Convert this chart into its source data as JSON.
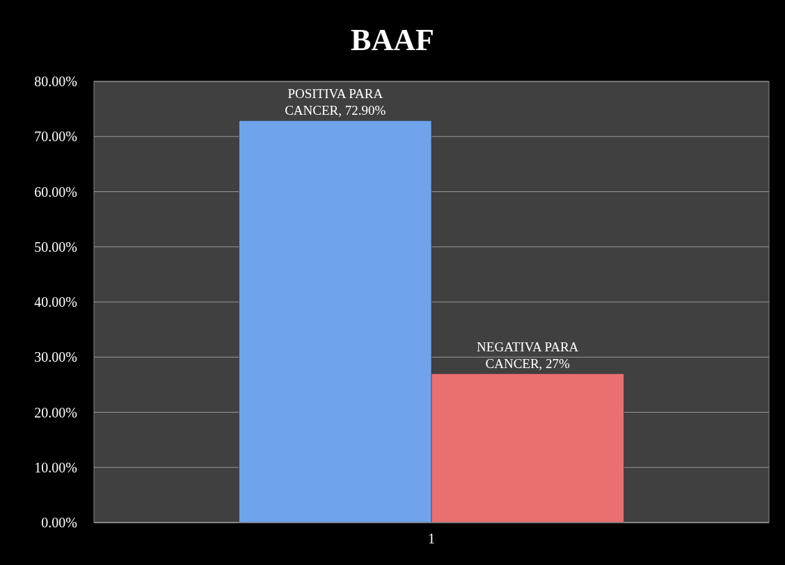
{
  "chart_data": {
    "type": "bar",
    "title": "BAAF",
    "categories": [
      "1"
    ],
    "series": [
      {
        "name": "POSITIVA PARA CANCER,",
        "color": "#6fa3ec",
        "values": [
          72.9
        ],
        "value_labels": [
          "72.90%"
        ]
      },
      {
        "name": "NEGATIVA PARA CANCER,",
        "color": "#e87070",
        "values": [
          27
        ],
        "value_labels": [
          "27%"
        ]
      }
    ],
    "ylim": [
      0,
      80
    ],
    "yticks": [
      {
        "value": 0,
        "label": "0.00%"
      },
      {
        "value": 10,
        "label": "10.00%"
      },
      {
        "value": 20,
        "label": "20.00%"
      },
      {
        "value": 30,
        "label": "30.00%"
      },
      {
        "value": 40,
        "label": "40.00%"
      },
      {
        "value": 50,
        "label": "50.00%"
      },
      {
        "value": 60,
        "label": "60.00%"
      },
      {
        "value": 70,
        "label": "70.00%"
      },
      {
        "value": 80,
        "label": "80.00%"
      }
    ],
    "grid": "y"
  }
}
